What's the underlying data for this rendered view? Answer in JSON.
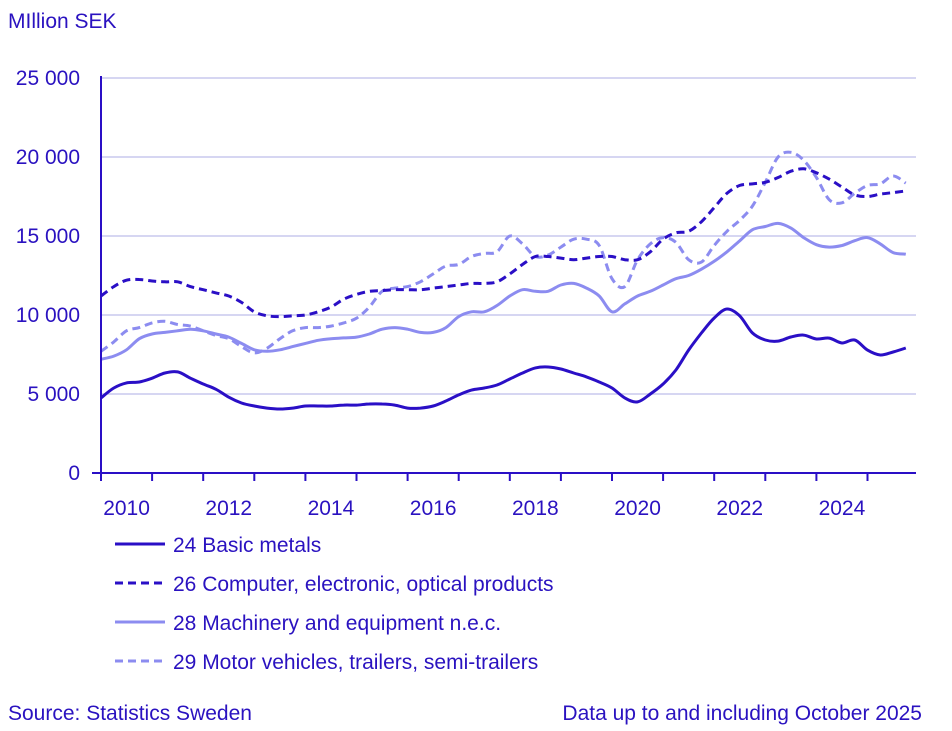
{
  "chart_data": {
    "type": "line",
    "title": "",
    "ylabel": "MIllion SEK",
    "xlabel": "",
    "ylim": [
      0,
      25000
    ],
    "yticks": [
      0,
      5000,
      10000,
      15000,
      20000,
      25000
    ],
    "ytick_labels": [
      "0",
      "5 000",
      "10 000",
      "15 000",
      "20 000",
      "25 000"
    ],
    "xticks": [
      "2010",
      "2012",
      "2014",
      "2016",
      "2018",
      "2020",
      "2022",
      "2024"
    ],
    "xlim": [
      "2010-01",
      "2025-10"
    ],
    "grid": "horizontal",
    "legend_position": "bottom",
    "x_start": "2010-01",
    "x_step": "quarter",
    "series": [
      {
        "name": "24 Basic metals",
        "color": "#2a0fc6",
        "style": "solid",
        "values": [
          4750,
          5380,
          5700,
          5760,
          6000,
          6330,
          6400,
          6000,
          5630,
          5300,
          4800,
          4430,
          4240,
          4110,
          4050,
          4110,
          4240,
          4240,
          4240,
          4300,
          4300,
          4370,
          4370,
          4300,
          4110,
          4110,
          4240,
          4560,
          4940,
          5250,
          5380,
          5570,
          5950,
          6330,
          6650,
          6710,
          6580,
          6330,
          6080,
          5760,
          5380,
          4750,
          4500,
          5000,
          5630,
          6520,
          7780,
          8860,
          9810,
          10380,
          9940,
          8860,
          8420,
          8350,
          8610,
          8730,
          8480,
          8540,
          8230,
          8420,
          7780,
          7470,
          7660,
          7910
        ]
      },
      {
        "name": "26 Computer, electronic, optical products",
        "color": "#2a0fc6",
        "style": "dashed",
        "values": [
          11200,
          11800,
          12200,
          12250,
          12150,
          12100,
          12100,
          11800,
          11600,
          11400,
          11200,
          10800,
          10200,
          9950,
          9900,
          9950,
          10000,
          10200,
          10500,
          11000,
          11300,
          11500,
          11550,
          11600,
          11600,
          11600,
          11700,
          11800,
          11900,
          12000,
          12000,
          12100,
          12600,
          13200,
          13700,
          13700,
          13600,
          13500,
          13600,
          13700,
          13700,
          13500,
          13500,
          14000,
          14800,
          15200,
          15300,
          15900,
          16800,
          17700,
          18200,
          18300,
          18400,
          18700,
          19100,
          19250,
          19000,
          18600,
          18100,
          17600,
          17500,
          17650,
          17750,
          17850
        ]
      },
      {
        "name": "28 Machinery and equipment n.e.c.",
        "color": "#8c8cf0",
        "style": "solid",
        "values": [
          7200,
          7400,
          7800,
          8500,
          8800,
          8900,
          9000,
          9100,
          9000,
          8800,
          8600,
          8200,
          7800,
          7700,
          7800,
          8000,
          8200,
          8400,
          8500,
          8550,
          8600,
          8800,
          9100,
          9200,
          9100,
          8900,
          8900,
          9200,
          9900,
          10200,
          10200,
          10600,
          11200,
          11600,
          11500,
          11500,
          11900,
          12000,
          11700,
          11200,
          10200,
          10700,
          11200,
          11500,
          11900,
          12300,
          12500,
          12900,
          13400,
          14000,
          14700,
          15400,
          15600,
          15800,
          15500,
          14900,
          14450,
          14300,
          14400,
          14700,
          14900,
          14500,
          13950,
          13850
        ]
      },
      {
        "name": "29 Motor vehicles, trailers, semi-trailers",
        "color": "#8c8cf0",
        "style": "dashed",
        "values": [
          7700,
          8300,
          9000,
          9200,
          9500,
          9600,
          9400,
          9300,
          9000,
          8700,
          8500,
          8000,
          7600,
          7900,
          8500,
          9000,
          9200,
          9200,
          9300,
          9500,
          9800,
          10500,
          11500,
          11700,
          11800,
          12100,
          12600,
          13100,
          13200,
          13700,
          13900,
          14000,
          15000,
          14500,
          13700,
          13800,
          14300,
          14800,
          14800,
          14400,
          12300,
          11800,
          13500,
          14500,
          14900,
          14600,
          13500,
          13350,
          14400,
          15300,
          16000,
          16900,
          18400,
          20000,
          20300,
          19800,
          18700,
          17300,
          17100,
          17700,
          18200,
          18300,
          18800,
          18350
        ]
      }
    ]
  },
  "colors": {
    "text": "#2a12c0",
    "grid": "#c8c8ee",
    "axis": "#2a0fc6"
  },
  "footer": {
    "source": "Source: Statistics Sweden",
    "note": "Data up to and including October 2025"
  }
}
